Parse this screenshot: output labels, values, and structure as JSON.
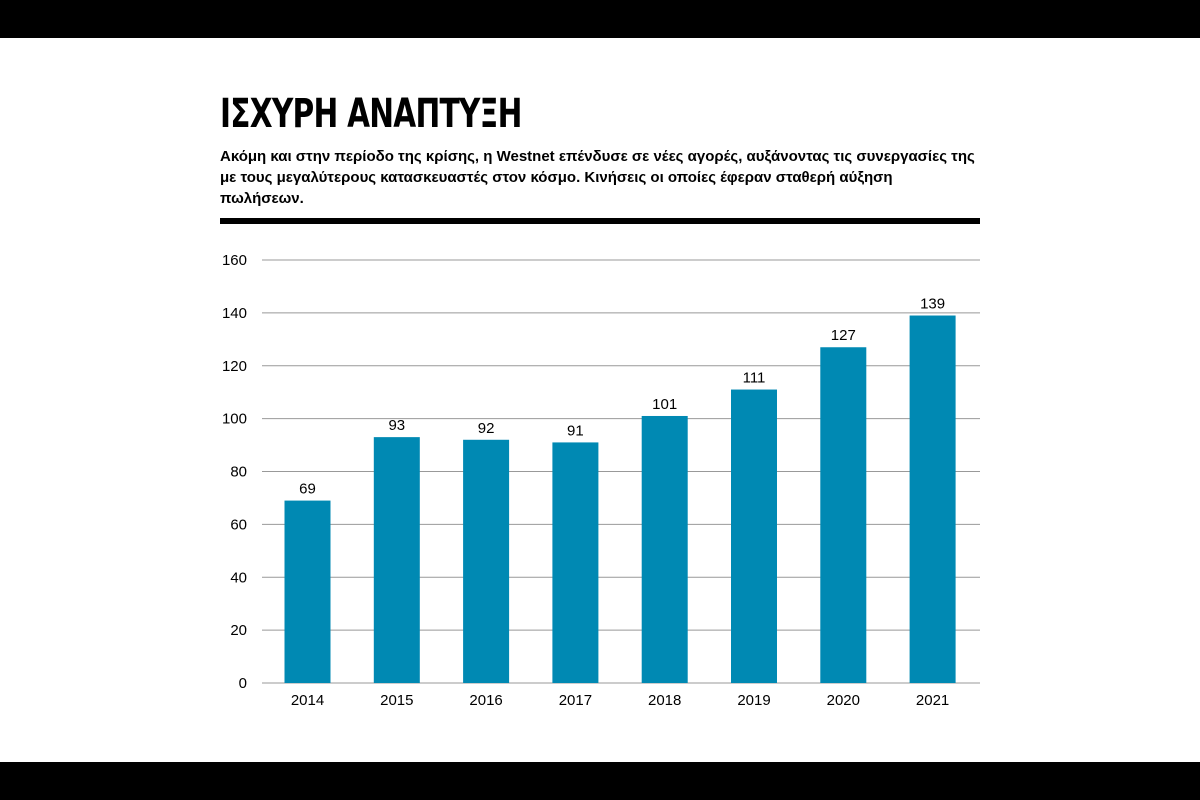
{
  "header": {
    "title": "ΙΣΧΥΡΗ ΑΝΑΠΤΥΞΗ",
    "subtitle": "Ακόμη και στην περίοδο της κρίσης, η Westnet επένδυσε σε νέες αγορές, αυξάνοντας τις συνεργασίες της με τους μεγαλύτερους κατασκευαστές στον κόσμο. Κινήσεις οι οποίες έφεραν σταθερή αύξηση πωλήσεων."
  },
  "colors": {
    "bar": "#0089b3",
    "grid": "#999999",
    "text": "#000000",
    "band": "#000000"
  },
  "chart_data": {
    "type": "bar",
    "title": "ΙΣΧΥΡΗ ΑΝΑΠΤΥΞΗ",
    "xlabel": "",
    "ylabel": "",
    "categories": [
      "2014",
      "2015",
      "2016",
      "2017",
      "2018",
      "2019",
      "2020",
      "2021"
    ],
    "values": [
      69,
      93,
      92,
      91,
      101,
      111,
      127,
      139
    ],
    "data_labels": [
      "69",
      "93",
      "92",
      "91",
      "101",
      "111",
      "127",
      "139"
    ],
    "ylim": [
      0,
      160
    ],
    "yticks": [
      0,
      20,
      40,
      60,
      80,
      100,
      120,
      140,
      160
    ],
    "grid": true,
    "legend": "none"
  }
}
